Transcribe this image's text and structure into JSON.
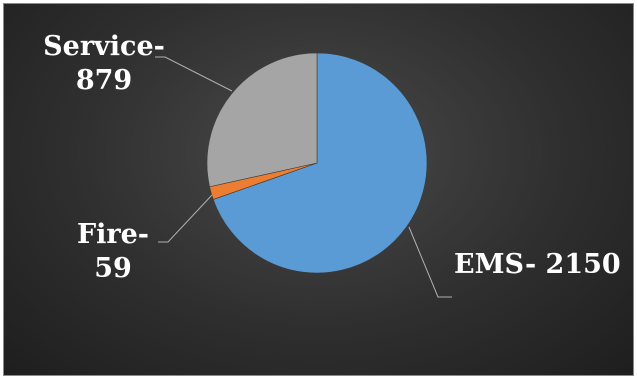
{
  "chart_data": {
    "type": "pie",
    "categories": [
      "EMS",
      "Fire",
      "Service"
    ],
    "values": [
      2150,
      59,
      879
    ],
    "colors": [
      "#5b9bd5",
      "#ed7d31",
      "#a5a5a5"
    ],
    "labels": [
      {
        "line1": "EMS- 2150",
        "line2": ""
      },
      {
        "line1": "Fire-",
        "line2": "59"
      },
      {
        "line1": "Service-",
        "line2": "879"
      }
    ],
    "title": "",
    "legend": "none"
  }
}
